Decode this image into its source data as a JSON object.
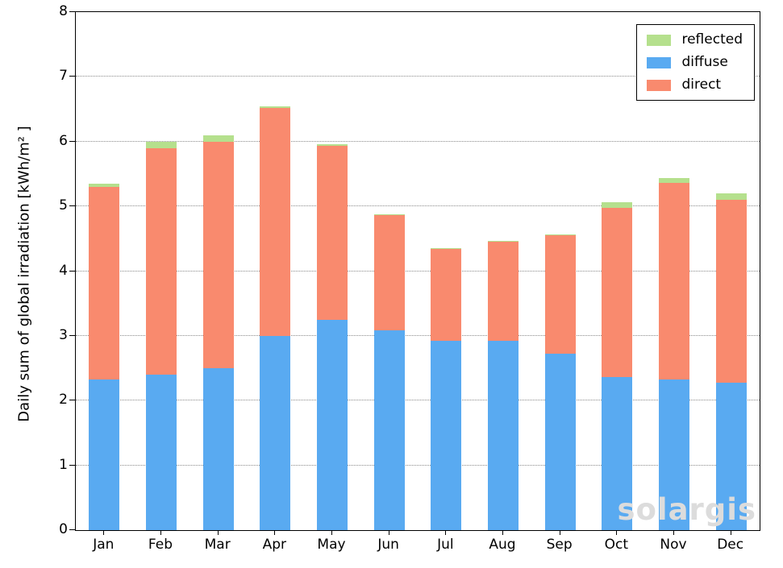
{
  "chart_data": {
    "type": "bar",
    "stacked": true,
    "categories": [
      "Jan",
      "Feb",
      "Mar",
      "Apr",
      "May",
      "Jun",
      "Jul",
      "Aug",
      "Sep",
      "Oct",
      "Nov",
      "Dec"
    ],
    "series": [
      {
        "name": "diffuse",
        "color": "#59aaf1",
        "values": [
          2.33,
          2.4,
          2.5,
          3.0,
          3.25,
          3.08,
          2.93,
          2.92,
          2.72,
          2.37,
          2.33,
          2.28
        ]
      },
      {
        "name": "direct",
        "color": "#f98a6e",
        "values": [
          2.97,
          3.5,
          3.5,
          3.52,
          2.68,
          1.78,
          1.41,
          1.53,
          1.83,
          2.61,
          3.03,
          2.82
        ]
      },
      {
        "name": "reflected",
        "color": "#b5e08d",
        "values": [
          0.05,
          0.1,
          0.1,
          0.03,
          0.03,
          0.02,
          0.02,
          0.02,
          0.02,
          0.09,
          0.08,
          0.1
        ]
      }
    ],
    "legend": [
      "reflected",
      "diffuse",
      "direct"
    ],
    "title": "",
    "xlabel": "",
    "ylabel": "Daily sum of global irradiation [kWh/m² ]",
    "ylim": [
      0,
      8
    ],
    "yticks": [
      0,
      1,
      2,
      3,
      4,
      5,
      6,
      7,
      8
    ],
    "grid": "horizontal-dotted",
    "legend_position": "top-right",
    "watermark": "solargis"
  }
}
